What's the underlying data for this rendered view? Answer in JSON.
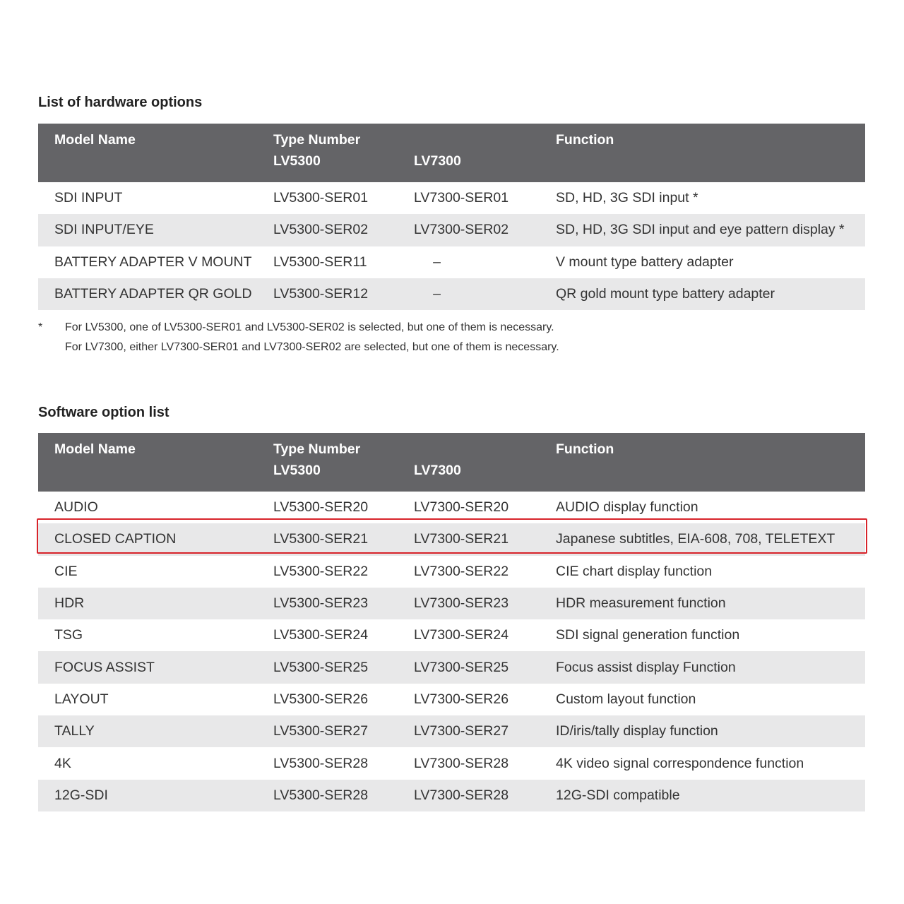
{
  "hardware": {
    "title": "List of hardware options",
    "headers": {
      "model": "Model Name",
      "type": "Type Number",
      "lv5300": "LV5300",
      "lv7300": "LV7300",
      "function": "Function"
    },
    "rows": [
      {
        "model": "SDI INPUT",
        "lv5300": "LV5300-SER01",
        "lv7300": "LV7300-SER01",
        "function": "SD, HD, 3G SDI input *"
      },
      {
        "model": "SDI INPUT/EYE",
        "lv5300": "LV5300-SER02",
        "lv7300": "LV7300-SER02",
        "function": "SD, HD, 3G SDI input and eye pattern display *"
      },
      {
        "model": "BATTERY ADAPTER V MOUNT",
        "lv5300": "LV5300-SER11",
        "lv7300": "–",
        "function": "V mount type battery adapter"
      },
      {
        "model": "BATTERY ADAPTER QR GOLD",
        "lv5300": "LV5300-SER12",
        "lv7300": "–",
        "function": "QR gold mount type battery adapter"
      }
    ],
    "footnote": {
      "mark": "*",
      "lines": [
        "For LV5300, one of LV5300-SER01 and LV5300-SER02 is selected, but one of them is necessary.",
        "For LV7300, either LV7300-SER01 and LV7300-SER02 are selected, but one of them is necessary."
      ]
    }
  },
  "software": {
    "title": "Software option list",
    "headers": {
      "model": "Model Name",
      "type": "Type Number",
      "lv5300": "LV5300",
      "lv7300": "LV7300",
      "function": "Function"
    },
    "highlighted_row": "CLOSED CAPTION",
    "highlight_color": "#d8232a",
    "rows": [
      {
        "model": "AUDIO",
        "lv5300": "LV5300-SER20",
        "lv7300": "LV7300-SER20",
        "function": "AUDIO display function"
      },
      {
        "model": "CLOSED CAPTION",
        "lv5300": "LV5300-SER21",
        "lv7300": "LV7300-SER21",
        "function": "Japanese subtitles, EIA-608, 708, TELETEXT"
      },
      {
        "model": "CIE",
        "lv5300": "LV5300-SER22",
        "lv7300": "LV7300-SER22",
        "function": "CIE chart display function"
      },
      {
        "model": "HDR",
        "lv5300": "LV5300-SER23",
        "lv7300": "LV7300-SER23",
        "function": "HDR measurement function"
      },
      {
        "model": "TSG",
        "lv5300": "LV5300-SER24",
        "lv7300": "LV7300-SER24",
        "function": "SDI signal generation function"
      },
      {
        "model": "FOCUS ASSIST",
        "lv5300": "LV5300-SER25",
        "lv7300": "LV7300-SER25",
        "function": "Focus assist display Function"
      },
      {
        "model": "LAYOUT",
        "lv5300": "LV5300-SER26",
        "lv7300": "LV7300-SER26",
        "function": "Custom layout function"
      },
      {
        "model": "TALLY",
        "lv5300": "LV5300-SER27",
        "lv7300": "LV7300-SER27",
        "function": "ID/iris/tally display function"
      },
      {
        "model": "4K",
        "lv5300": "LV5300-SER28",
        "lv7300": "LV7300-SER28",
        "function": "4K video signal correspondence function"
      },
      {
        "model": "12G-SDI",
        "lv5300": "LV5300-SER28",
        "lv7300": "LV7300-SER28",
        "function": "12G-SDI compatible"
      }
    ]
  },
  "colors": {
    "header_bg": "#646467",
    "stripe_bg": "#e8e8e9",
    "highlight": "#d8232a"
  }
}
